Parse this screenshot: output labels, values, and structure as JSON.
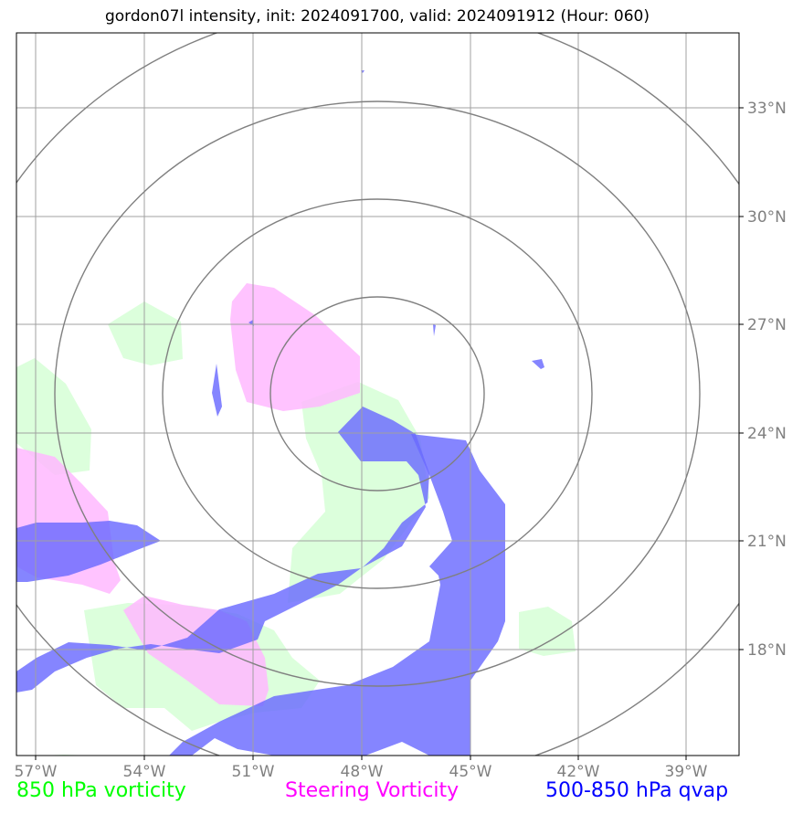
{
  "title": "gordon07l intensity, init: 2024091700, valid: 2024091912 (Hour: 060)",
  "x_ticks": [
    {
      "label": "57°W",
      "lon": -57
    },
    {
      "label": "54°W",
      "lon": -54
    },
    {
      "label": "51°W",
      "lon": -51
    },
    {
      "label": "48°W",
      "lon": -48
    },
    {
      "label": "45°W",
      "lon": -45
    },
    {
      "label": "42°W",
      "lon": -42
    },
    {
      "label": "39°W",
      "lon": -39
    }
  ],
  "y_ticks": [
    {
      "label": "33°N",
      "lat": 33
    },
    {
      "label": "30°N",
      "lat": 30
    },
    {
      "label": "27°N",
      "lat": 27
    },
    {
      "label": "24°N",
      "lat": 24
    },
    {
      "label": "21°N",
      "lat": 21
    },
    {
      "label": "18°N",
      "lat": 18
    }
  ],
  "legend": {
    "green_label": "850 hPa vorticity",
    "magenta_label": "Steering Vorticity",
    "blue_label": "500-850 hPa qvap"
  },
  "colors": {
    "green": "#00ff00",
    "magenta": "#ff00ff",
    "blue": "#0000ff",
    "green_fill": "#dcffdc",
    "magenta_fill": "#ffb8ff",
    "blue_fill": "#7b7bff",
    "grid": "#a0a0a0",
    "ring": "#808080"
  }
}
